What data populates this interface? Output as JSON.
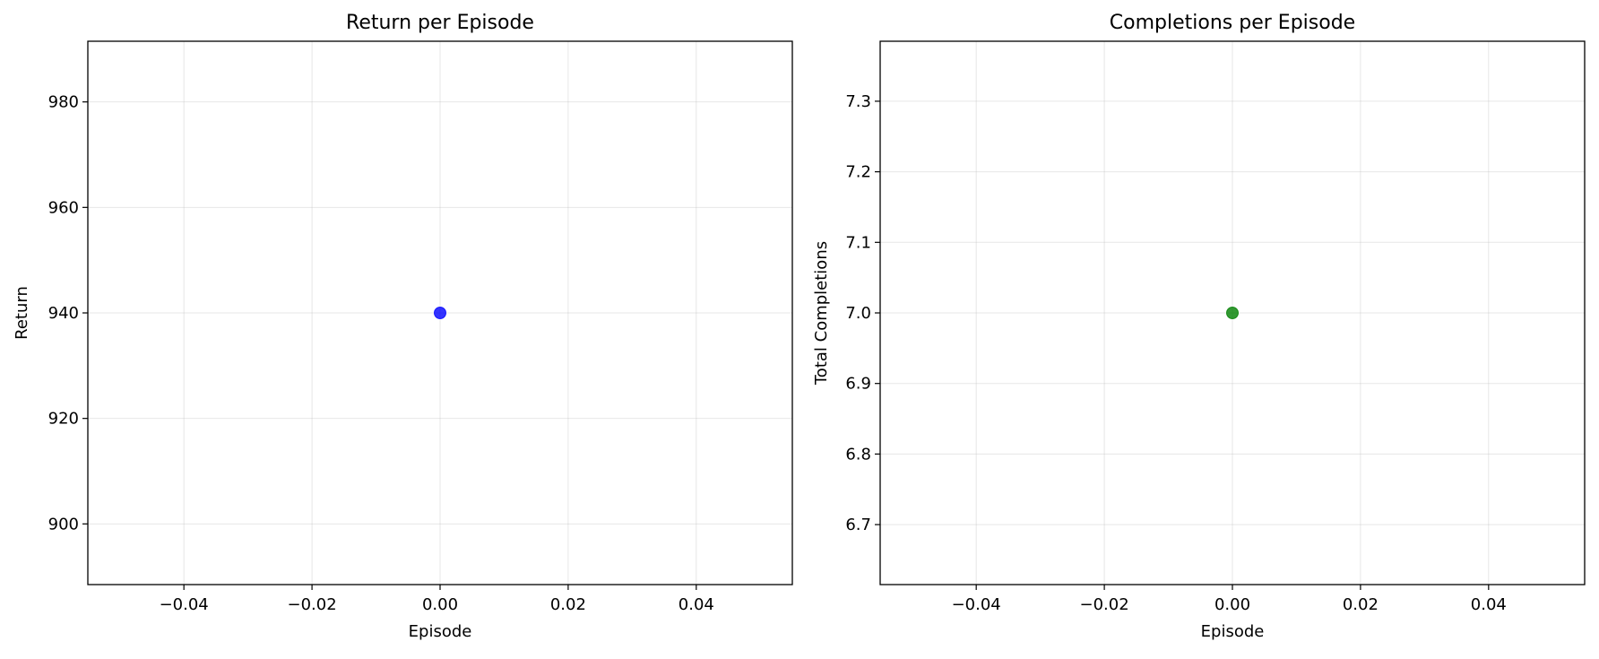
{
  "chart_data": [
    {
      "type": "scatter",
      "title": "Return per Episode",
      "xlabel": "Episode",
      "ylabel": "Return",
      "xlim": [
        -0.055,
        0.055
      ],
      "ylim": [
        888.5,
        991.5
      ],
      "xticks": [
        -0.04,
        -0.02,
        0.0,
        0.02,
        0.04
      ],
      "xtick_labels": [
        "−0.04",
        "−0.02",
        "0.00",
        "0.02",
        "0.04"
      ],
      "yticks": [
        900,
        920,
        940,
        960,
        980
      ],
      "ytick_labels": [
        "900",
        "920",
        "940",
        "960",
        "980"
      ],
      "grid": true,
      "series": [
        {
          "color": "#0000ff",
          "points": [
            {
              "x": 0.0,
              "y": 940
            }
          ]
        }
      ]
    },
    {
      "type": "scatter",
      "title": "Completions per Episode",
      "xlabel": "Episode",
      "ylabel": "Total Completions",
      "xlim": [
        -0.055,
        0.055
      ],
      "ylim": [
        6.615,
        7.385
      ],
      "xticks": [
        -0.04,
        -0.02,
        0.0,
        0.02,
        0.04
      ],
      "xtick_labels": [
        "−0.04",
        "−0.02",
        "0.00",
        "0.02",
        "0.04"
      ],
      "yticks": [
        6.7,
        6.8,
        6.9,
        7.0,
        7.1,
        7.2,
        7.3
      ],
      "ytick_labels": [
        "6.7",
        "6.8",
        "6.9",
        "7.0",
        "7.1",
        "7.2",
        "7.3"
      ],
      "grid": true,
      "series": [
        {
          "color": "#008000",
          "points": [
            {
              "x": 0.0,
              "y": 7.0
            }
          ]
        }
      ]
    }
  ]
}
